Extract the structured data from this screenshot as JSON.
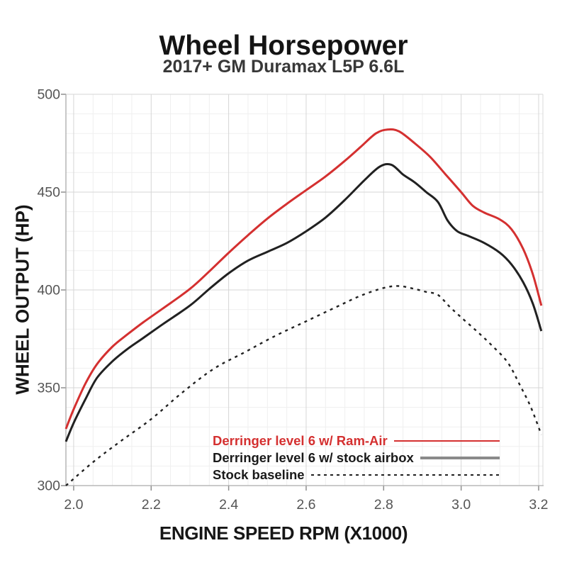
{
  "title": "Wheel Horsepower",
  "subtitle": "2017+ GM Duramax L5P 6.6L",
  "chart_data": {
    "type": "line",
    "title": "Wheel Horsepower",
    "subtitle": "2017+ GM Duramax L5P 6.6L",
    "xlabel": "ENGINE SPEED RPM (X1000)",
    "ylabel": "WHEEL OUTPUT (HP)",
    "xlim": [
      1.98,
      3.211
    ],
    "ylim": [
      300,
      500
    ],
    "x_tick_labels": [
      "2.0",
      "2.2",
      "2.4",
      "2.6",
      "2.8",
      "3.0",
      "3.2"
    ],
    "x_major_ticks": [
      2.0,
      2.2,
      2.4,
      2.6,
      2.8,
      3.0,
      3.2
    ],
    "x_minor_step": 0.05,
    "y_tick_labels": [
      "300",
      "350",
      "400",
      "450",
      "500"
    ],
    "y_major_ticks": [
      300,
      350,
      400,
      450,
      500
    ],
    "y_minor_step": 10,
    "grid": true,
    "legend_position": "inside lower right",
    "series": [
      {
        "name": "Derringer level 6 w/ Ram-Air",
        "color": "#d43030",
        "label_color": "#d43030",
        "legend_line_color": "#d43030",
        "style": "solid",
        "width": 3,
        "points": [
          [
            1.98,
            329
          ],
          [
            2.0,
            339
          ],
          [
            2.03,
            352
          ],
          [
            2.06,
            362
          ],
          [
            2.1,
            371
          ],
          [
            2.14,
            377.5
          ],
          [
            2.18,
            383.5
          ],
          [
            2.23,
            390.5
          ],
          [
            2.3,
            400.5
          ],
          [
            2.35,
            409.5
          ],
          [
            2.4,
            419
          ],
          [
            2.45,
            428
          ],
          [
            2.5,
            436.5
          ],
          [
            2.55,
            444
          ],
          [
            2.6,
            451
          ],
          [
            2.65,
            458
          ],
          [
            2.7,
            466
          ],
          [
            2.74,
            473
          ],
          [
            2.78,
            480
          ],
          [
            2.81,
            482
          ],
          [
            2.84,
            481
          ],
          [
            2.88,
            475
          ],
          [
            2.92,
            468
          ],
          [
            2.96,
            459
          ],
          [
            3.0,
            450
          ],
          [
            3.03,
            443
          ],
          [
            3.06,
            439.5
          ],
          [
            3.1,
            436
          ],
          [
            3.13,
            431
          ],
          [
            3.16,
            421
          ],
          [
            3.185,
            408
          ],
          [
            3.207,
            392
          ]
        ]
      },
      {
        "name": "Derringer level 6 w/ stock airbox",
        "color": "#212121",
        "label_color": "#1a1a1a",
        "legend_line_color": "#8a8a8a",
        "style": "solid",
        "width": 3,
        "points": [
          [
            1.98,
            322.5
          ],
          [
            2.0,
            332
          ],
          [
            2.03,
            344
          ],
          [
            2.06,
            355
          ],
          [
            2.1,
            363.5
          ],
          [
            2.14,
            370
          ],
          [
            2.18,
            375.5
          ],
          [
            2.23,
            382.5
          ],
          [
            2.3,
            392
          ],
          [
            2.35,
            400.5
          ],
          [
            2.4,
            408.5
          ],
          [
            2.45,
            415
          ],
          [
            2.5,
            419.5
          ],
          [
            2.55,
            424
          ],
          [
            2.6,
            430
          ],
          [
            2.65,
            437
          ],
          [
            2.7,
            446
          ],
          [
            2.75,
            456
          ],
          [
            2.79,
            463
          ],
          [
            2.82,
            464
          ],
          [
            2.85,
            459
          ],
          [
            2.88,
            455
          ],
          [
            2.91,
            450
          ],
          [
            2.94,
            445
          ],
          [
            2.965,
            435.5
          ],
          [
            2.99,
            430
          ],
          [
            3.02,
            427.5
          ],
          [
            3.06,
            424
          ],
          [
            3.1,
            419
          ],
          [
            3.13,
            413
          ],
          [
            3.16,
            404
          ],
          [
            3.185,
            393
          ],
          [
            3.207,
            379
          ]
        ]
      },
      {
        "name": "Stock baseline",
        "color": "#212121",
        "label_color": "#1a1a1a",
        "legend_line_color": "#212121",
        "style": "dashed",
        "width": 2.4,
        "points": [
          [
            1.98,
            300
          ],
          [
            2.05,
            312
          ],
          [
            2.12,
            322.5
          ],
          [
            2.2,
            334
          ],
          [
            2.28,
            347.5
          ],
          [
            2.36,
            359.5
          ],
          [
            2.44,
            368
          ],
          [
            2.52,
            376.5
          ],
          [
            2.6,
            384
          ],
          [
            2.68,
            391.5
          ],
          [
            2.74,
            397
          ],
          [
            2.8,
            401
          ],
          [
            2.84,
            402
          ],
          [
            2.88,
            400.5
          ],
          [
            2.91,
            399
          ],
          [
            2.94,
            397.5
          ],
          [
            2.97,
            391.5
          ],
          [
            3.0,
            386
          ],
          [
            3.04,
            379
          ],
          [
            3.08,
            371.5
          ],
          [
            3.12,
            363
          ],
          [
            3.15,
            352
          ],
          [
            3.18,
            340
          ],
          [
            3.207,
            326
          ]
        ]
      }
    ]
  }
}
